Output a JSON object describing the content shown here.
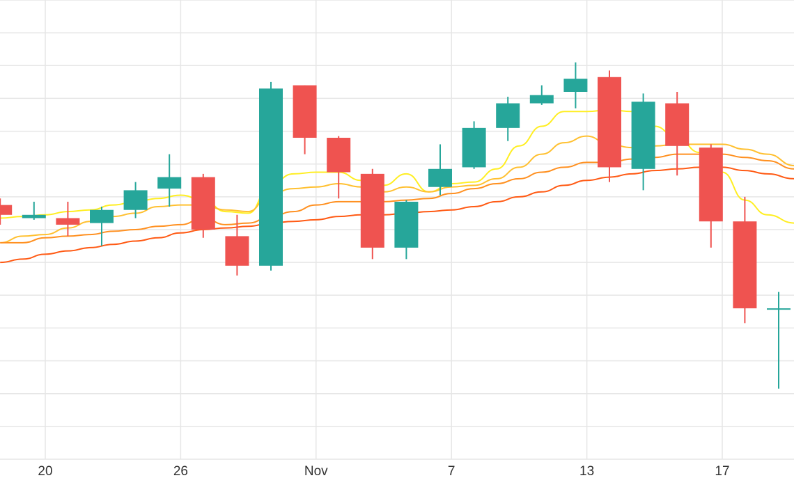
{
  "chart_data": {
    "type": "candlestick",
    "title": "",
    "xlabel": "",
    "ylabel": "",
    "grid": true,
    "legend": "none",
    "x_tick_labels": [
      {
        "x": 20,
        "label": "20"
      },
      {
        "x": 26,
        "label": "26"
      },
      {
        "x": 32,
        "label": "Nov"
      },
      {
        "x": 38,
        "label": "7"
      },
      {
        "x": 44,
        "label": "13"
      },
      {
        "x": 50,
        "label": "17"
      }
    ],
    "xlim": [
      18,
      53.2
    ],
    "ylim": [
      0,
      14
    ],
    "candles": [
      {
        "x": 18.0,
        "open": 7.75,
        "close": 7.45,
        "high": 7.95,
        "low": 7.15
      },
      {
        "x": 19.5,
        "open": 7.35,
        "close": 7.45,
        "high": 7.85,
        "low": 7.3
      },
      {
        "x": 21.0,
        "open": 7.35,
        "close": 7.15,
        "high": 7.85,
        "low": 6.8
      },
      {
        "x": 22.5,
        "open": 7.2,
        "close": 7.6,
        "high": 7.7,
        "low": 6.5
      },
      {
        "x": 24.0,
        "open": 7.6,
        "close": 8.2,
        "high": 8.45,
        "low": 7.35
      },
      {
        "x": 25.5,
        "open": 8.25,
        "close": 8.6,
        "high": 9.3,
        "low": 7.7
      },
      {
        "x": 27.0,
        "open": 8.6,
        "close": 7.0,
        "high": 8.7,
        "low": 6.75
      },
      {
        "x": 28.5,
        "open": 6.8,
        "close": 5.9,
        "high": 7.45,
        "low": 5.6
      },
      {
        "x": 30.0,
        "open": 5.9,
        "close": 11.3,
        "high": 11.5,
        "low": 5.75
      },
      {
        "x": 31.5,
        "open": 11.4,
        "close": 9.8,
        "high": 11.4,
        "low": 9.3
      },
      {
        "x": 33.0,
        "open": 9.8,
        "close": 8.75,
        "high": 9.85,
        "low": 7.95
      },
      {
        "x": 34.5,
        "open": 8.7,
        "close": 6.45,
        "high": 8.85,
        "low": 6.1
      },
      {
        "x": 36.0,
        "open": 6.45,
        "close": 7.85,
        "high": 7.9,
        "low": 6.1
      },
      {
        "x": 37.5,
        "open": 8.3,
        "close": 8.85,
        "high": 9.6,
        "low": 8.05
      },
      {
        "x": 39.0,
        "open": 8.9,
        "close": 10.1,
        "high": 10.3,
        "low": 8.85
      },
      {
        "x": 40.5,
        "open": 10.1,
        "close": 10.85,
        "high": 11.05,
        "low": 9.7
      },
      {
        "x": 42.0,
        "open": 10.85,
        "close": 11.1,
        "high": 11.4,
        "low": 10.8
      },
      {
        "x": 43.5,
        "open": 11.2,
        "close": 11.6,
        "high": 12.1,
        "low": 10.7
      },
      {
        "x": 45.0,
        "open": 11.65,
        "close": 8.9,
        "high": 11.85,
        "low": 8.45
      },
      {
        "x": 46.5,
        "open": 8.85,
        "close": 10.9,
        "high": 11.15,
        "low": 8.2
      },
      {
        "x": 48.0,
        "open": 10.85,
        "close": 9.55,
        "high": 11.2,
        "low": 8.65
      },
      {
        "x": 49.5,
        "open": 9.5,
        "close": 7.25,
        "high": 9.6,
        "low": 6.45
      },
      {
        "x": 51.0,
        "open": 7.25,
        "close": 4.6,
        "high": 8.0,
        "low": 4.15
      },
      {
        "x": 52.5,
        "open": 4.6,
        "close": 4.6,
        "high": 5.1,
        "low": 2.15
      }
    ],
    "moving_averages": [
      {
        "color": "#ffee22",
        "x": [
          18,
          19,
          20,
          21,
          22,
          23,
          24,
          25,
          26,
          27,
          28,
          29,
          30,
          31,
          32,
          33,
          34,
          35,
          36,
          37,
          38,
          39,
          40,
          41,
          42,
          43,
          44,
          45,
          46,
          47,
          48,
          49,
          50,
          51,
          52,
          53.2
        ],
        "y": [
          7.35,
          7.4,
          7.45,
          7.55,
          7.6,
          7.75,
          7.85,
          7.95,
          8.05,
          7.9,
          7.55,
          7.5,
          8.4,
          8.7,
          8.75,
          8.75,
          8.5,
          8.35,
          8.7,
          8.15,
          8.4,
          8.45,
          8.85,
          9.55,
          10.15,
          10.6,
          10.6,
          10.65,
          10.6,
          10.15,
          9.8,
          9.35,
          8.75,
          7.9,
          7.45,
          7.2
        ]
      },
      {
        "color": "#ffc030",
        "x": [
          18,
          19,
          20,
          21,
          22,
          23,
          24,
          25,
          26,
          27,
          28,
          29,
          30,
          31,
          32,
          33,
          34,
          35,
          36,
          37,
          38,
          39,
          40,
          41,
          42,
          43,
          44,
          45,
          46,
          47,
          48,
          49,
          50,
          51,
          52,
          53.2
        ],
        "y": [
          6.6,
          6.8,
          6.85,
          7.05,
          7.25,
          7.4,
          7.5,
          7.7,
          7.75,
          7.75,
          7.6,
          7.55,
          8.1,
          8.25,
          8.3,
          8.4,
          8.3,
          8.15,
          8.3,
          8.15,
          8.3,
          8.35,
          8.55,
          8.9,
          9.3,
          9.65,
          9.85,
          9.6,
          9.5,
          9.55,
          9.6,
          9.6,
          9.6,
          9.45,
          9.3,
          8.95
        ]
      },
      {
        "color": "#ff9020",
        "x": [
          18,
          19,
          20,
          21,
          22,
          23,
          24,
          25,
          26,
          27,
          28,
          29,
          30,
          31,
          32,
          33,
          34,
          35,
          36,
          37,
          38,
          39,
          40,
          41,
          42,
          43,
          44,
          45,
          46,
          47,
          48,
          49,
          50,
          51,
          52,
          53.2
        ],
        "y": [
          6.6,
          6.6,
          6.75,
          6.8,
          6.85,
          6.95,
          7.0,
          7.1,
          7.15,
          7.35,
          7.15,
          7.2,
          7.4,
          7.55,
          7.75,
          7.85,
          7.85,
          7.85,
          7.9,
          7.95,
          8.1,
          8.25,
          8.4,
          8.55,
          8.75,
          8.9,
          9.05,
          9.05,
          9.15,
          9.2,
          9.3,
          9.3,
          9.3,
          9.2,
          9.1,
          8.85
        ]
      },
      {
        "color": "#ff5a14",
        "x": [
          18,
          19,
          20,
          21,
          22,
          23,
          24,
          25,
          26,
          27,
          28,
          29,
          30,
          31,
          32,
          33,
          34,
          35,
          36,
          37,
          38,
          39,
          40,
          41,
          42,
          43,
          44,
          45,
          46,
          47,
          48,
          49,
          50,
          51,
          52,
          53.2
        ],
        "y": [
          6.0,
          6.1,
          6.25,
          6.35,
          6.45,
          6.55,
          6.65,
          6.75,
          6.9,
          7.0,
          7.05,
          7.1,
          7.2,
          7.25,
          7.3,
          7.4,
          7.45,
          7.45,
          7.5,
          7.55,
          7.6,
          7.7,
          7.85,
          8.0,
          8.15,
          8.35,
          8.5,
          8.6,
          8.7,
          8.8,
          8.85,
          8.9,
          8.9,
          8.8,
          8.7,
          8.55
        ]
      }
    ],
    "colors": {
      "up": "#26a69a",
      "down": "#ef5350",
      "grid": "#e6e6e6"
    }
  }
}
